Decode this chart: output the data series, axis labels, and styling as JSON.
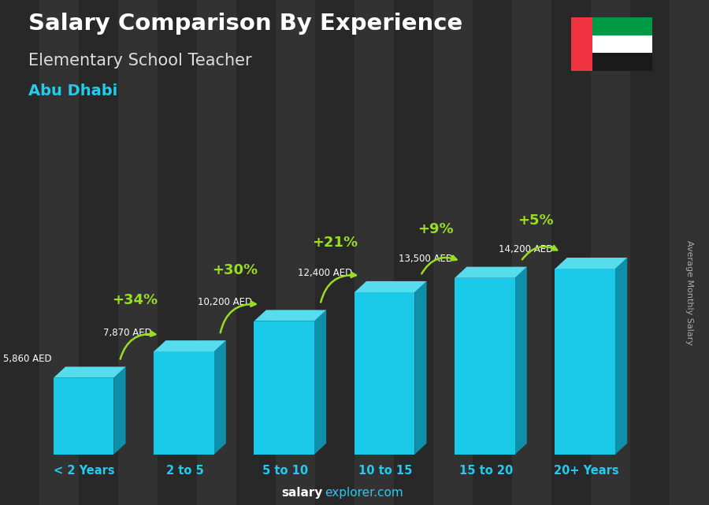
{
  "title": "Salary Comparison By Experience",
  "subtitle": "Elementary School Teacher",
  "city": "Abu Dhabi",
  "categories": [
    "< 2 Years",
    "2 to 5",
    "5 to 10",
    "10 to 15",
    "15 to 20",
    "20+ Years"
  ],
  "values": [
    5860,
    7870,
    10200,
    12400,
    13500,
    14200
  ],
  "labels": [
    "5,860 AED",
    "7,870 AED",
    "10,200 AED",
    "12,400 AED",
    "13,500 AED",
    "14,200 AED"
  ],
  "pct_changes": [
    null,
    "+34%",
    "+30%",
    "+21%",
    "+9%",
    "+5%"
  ],
  "bar_color_face": "#1AC8E8",
  "bar_color_dark": "#0E8FAA",
  "bar_color_top": "#55DDEE",
  "pct_color": "#99DD22",
  "label_color": "#FFFFFF",
  "title_color": "#FFFFFF",
  "subtitle_color": "#DDDDDD",
  "city_color": "#22CCEE",
  "bg_color": "#4a4a4a",
  "footer_text": "salaryexplorer.com",
  "right_label": "Average Monthly Salary",
  "ylabel_color": "#AAAAAA",
  "footer_salary_color": "#FFFFFF",
  "footer_explorer_color": "#22CCEE",
  "label_positions": [
    "left",
    "left",
    "left",
    "left",
    "left",
    "right"
  ]
}
